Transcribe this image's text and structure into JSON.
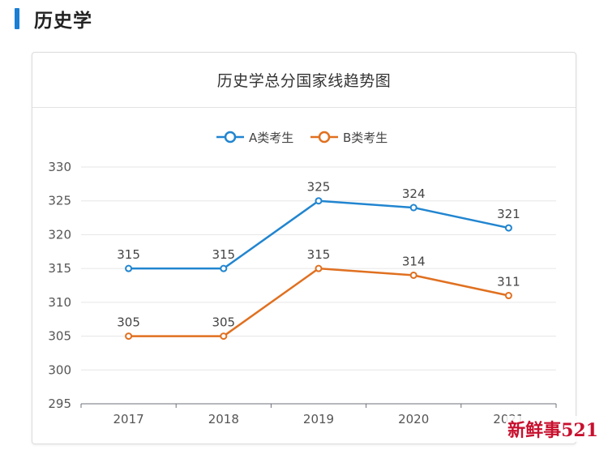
{
  "section": {
    "title": "历史学"
  },
  "card": {
    "title": "历史学总分国家线趋势图"
  },
  "watermark": "新鲜事521",
  "colors": {
    "accent": "#1a7fd4",
    "seriesA": "#2185d0",
    "seriesB": "#e07020"
  },
  "chart_data": {
    "type": "line",
    "title": "历史学总分国家线趋势图",
    "categories": [
      "2017",
      "2018",
      "2019",
      "2020",
      "2021"
    ],
    "series": [
      {
        "name": "A类考生",
        "color": "#2185d0",
        "values": [
          315,
          315,
          325,
          324,
          321
        ]
      },
      {
        "name": "B类考生",
        "color": "#e07020",
        "values": [
          305,
          305,
          315,
          314,
          311
        ]
      }
    ],
    "ylim": [
      295,
      330
    ],
    "yticks": [
      295,
      300,
      305,
      310,
      315,
      320,
      325,
      330
    ],
    "grid": true,
    "legend": "top-center",
    "data_labels": true
  }
}
